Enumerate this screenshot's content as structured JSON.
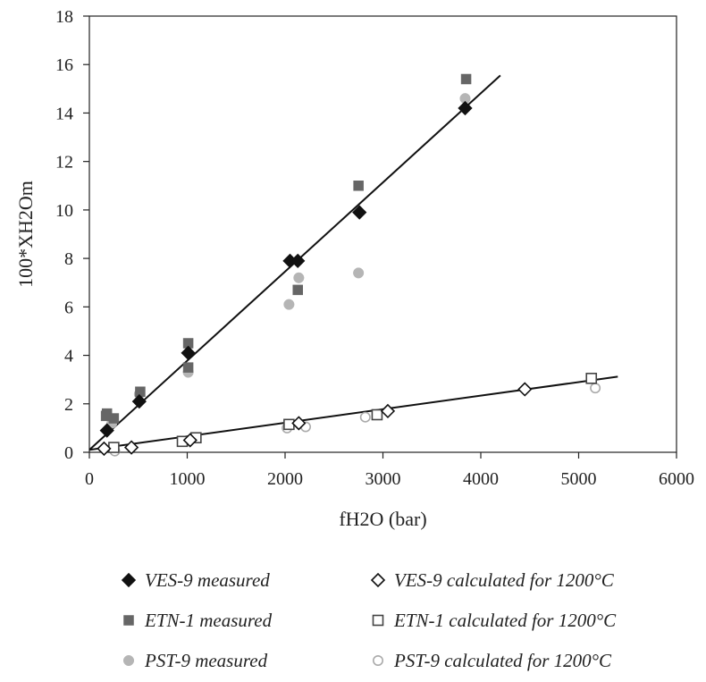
{
  "chart_data": {
    "type": "scatter",
    "xlabel": "fH2O (bar)",
    "ylabel": "100*XH2Om",
    "xlim": [
      0,
      6000
    ],
    "ylim": [
      0,
      18
    ],
    "xticks": [
      0,
      1000,
      2000,
      3000,
      4000,
      5000,
      6000
    ],
    "yticks": [
      0,
      2,
      4,
      6,
      8,
      10,
      12,
      14,
      16,
      18
    ],
    "grid": false,
    "legend_position": "bottom",
    "series": [
      {
        "name": "VES-9 measured",
        "marker": "diamond",
        "filled": true,
        "color": "#111111",
        "points": [
          [
            180,
            0.9
          ],
          [
            510,
            2.1
          ],
          [
            1010,
            4.1
          ],
          [
            2050,
            7.9
          ],
          [
            2130,
            7.9
          ],
          [
            2760,
            9.9
          ],
          [
            3840,
            14.2
          ]
        ]
      },
      {
        "name": "ETN-1 measured",
        "marker": "square",
        "filled": true,
        "color": "#666666",
        "points": [
          [
            170,
            1.5
          ],
          [
            180,
            1.6
          ],
          [
            250,
            1.4
          ],
          [
            520,
            2.5
          ],
          [
            1010,
            3.5
          ],
          [
            1010,
            4.5
          ],
          [
            2130,
            6.7
          ],
          [
            2750,
            11.0
          ],
          [
            3850,
            15.4
          ]
        ]
      },
      {
        "name": "PST-9 measured",
        "marker": "circle",
        "filled": true,
        "color": "#b5b5b5",
        "points": [
          [
            230,
            1.2
          ],
          [
            510,
            2.4
          ],
          [
            1010,
            3.3
          ],
          [
            2040,
            6.1
          ],
          [
            2140,
            7.2
          ],
          [
            2750,
            7.4
          ],
          [
            3840,
            14.6
          ]
        ]
      },
      {
        "name": "VES-9 calculated for 1200°C",
        "marker": "diamond",
        "filled": false,
        "color": "#111111",
        "points": [
          [
            150,
            0.15
          ],
          [
            430,
            0.2
          ],
          [
            1030,
            0.5
          ],
          [
            2140,
            1.2
          ],
          [
            3050,
            1.7
          ],
          [
            4450,
            2.6
          ]
        ]
      },
      {
        "name": "ETN-1 calculated for 1200°C",
        "marker": "square",
        "filled": false,
        "color": "#444444",
        "points": [
          [
            250,
            0.2
          ],
          [
            950,
            0.45
          ],
          [
            1090,
            0.6
          ],
          [
            2040,
            1.15
          ],
          [
            2940,
            1.55
          ],
          [
            5130,
            3.05
          ]
        ]
      },
      {
        "name": "PST-9 calculated for 1200°C",
        "marker": "circle",
        "filled": false,
        "color": "#aaaaaa",
        "points": [
          [
            260,
            0.05
          ],
          [
            2020,
            1.0
          ],
          [
            2210,
            1.05
          ],
          [
            2820,
            1.45
          ],
          [
            5170,
            2.65
          ]
        ]
      }
    ],
    "trend_lines": [
      {
        "from": [
          0,
          0.1
        ],
        "to": [
          4200,
          15.55
        ]
      },
      {
        "from": [
          0,
          0.1
        ],
        "to": [
          5400,
          3.12
        ]
      }
    ]
  }
}
